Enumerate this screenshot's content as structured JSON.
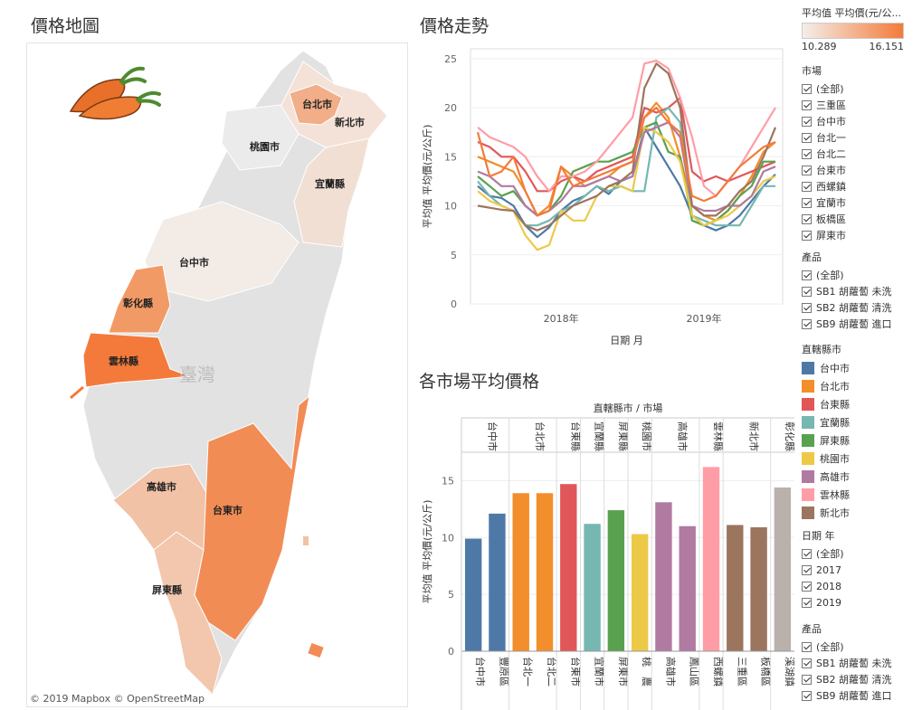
{
  "map": {
    "title": "價格地圖",
    "attribution": "© 2019 Mapbox © OpenStreetMap",
    "watermark": "臺灣",
    "labels": [
      "台北市",
      "新北市",
      "桃園市",
      "宜蘭縣",
      "台中市",
      "彰化縣",
      "雲林縣",
      "高雄市",
      "台東市",
      "屏東縣"
    ]
  },
  "trend": {
    "title": "價格走勢"
  },
  "avg": {
    "title": "各市場平均價格"
  },
  "legend_color": {
    "title": "平均值 平均價(元/公...",
    "min": "10.289",
    "max": "16.151"
  },
  "filters": {
    "market": {
      "title": "市場",
      "items": [
        "(全部)",
        "三重區",
        "台中市",
        "台北一",
        "台北二",
        "台東市",
        "西螺鎮",
        "宜蘭市",
        "板橋區",
        "屏東市"
      ]
    },
    "product": {
      "title": "產品",
      "items": [
        "(全部)",
        "SB1 胡蘿蔔 未洗",
        "SB2 胡蘿蔔 清洗",
        "SB9 胡蘿蔔 進口"
      ]
    },
    "county": {
      "title": "直轄縣市",
      "items": [
        {
          "name": "台中市",
          "color": "#4e79a7"
        },
        {
          "name": "台北市",
          "color": "#f28e2b"
        },
        {
          "name": "台東縣",
          "color": "#e15759"
        },
        {
          "name": "宜蘭縣",
          "color": "#76b7b2"
        },
        {
          "name": "屏東縣",
          "color": "#59a14f"
        },
        {
          "name": "桃園市",
          "color": "#edc948"
        },
        {
          "name": "高雄市",
          "color": "#b07aa1"
        },
        {
          "name": "雲林縣",
          "color": "#ff9da7"
        },
        {
          "name": "新北市",
          "color": "#9c755f"
        }
      ]
    },
    "year": {
      "title": "日期 年",
      "items": [
        "(全部)",
        "2017",
        "2018",
        "2019"
      ]
    },
    "product2": {
      "title": "產品",
      "items": [
        "(全部)",
        "SB1 胡蘿蔔 未洗",
        "SB2 胡蘿蔔 清洗",
        "SB9 胡蘿蔔 進口"
      ]
    }
  },
  "chart_data": [
    {
      "type": "line",
      "xlabel": "日期 月",
      "ylabel": "平均值 平均價(元/公斤)",
      "x_tick_labels": [
        "2018年",
        "2019年"
      ],
      "yticks": [
        0,
        5,
        10,
        15,
        20,
        25
      ],
      "ylim": [
        0,
        26
      ],
      "series": [
        {
          "color": "#4e79a7",
          "values": [
            12,
            11,
            10.8,
            10,
            8,
            6.8,
            7.8,
            9.5,
            10.5,
            11,
            12,
            11.2,
            12.5,
            13,
            18,
            16,
            14,
            12,
            9,
            8,
            7.5,
            8,
            9,
            10.5,
            12,
            13.2
          ]
        },
        {
          "color": "#f28e2b",
          "values": [
            15,
            14.5,
            14,
            13.5,
            11.5,
            9,
            10,
            14,
            13,
            12,
            12.5,
            13,
            14,
            14.5,
            19,
            20.5,
            19,
            15,
            10,
            9,
            8.5,
            9.5,
            11,
            13,
            15.5,
            16.5
          ]
        },
        {
          "color": "#e15759",
          "values": [
            16.5,
            16,
            15,
            15,
            13.5,
            11.5,
            11.5,
            12.5,
            13,
            12.5,
            13.5,
            14,
            14.5,
            15,
            20,
            19.5,
            20,
            21,
            13.5,
            12.5,
            13,
            12.5,
            13,
            13.5,
            14,
            14.5
          ]
        },
        {
          "color": "#76b7b2",
          "values": [
            12.5,
            11,
            10,
            9.5,
            8,
            8,
            8.5,
            9.5,
            10,
            11,
            12,
            11.5,
            12,
            11.5,
            11.5,
            19,
            20,
            18.5,
            9,
            8.5,
            8,
            8,
            8,
            10,
            12,
            12
          ]
        },
        {
          "color": "#59a14f",
          "values": [
            13,
            12,
            11,
            11.5,
            10,
            9,
            9.5,
            11,
            13.5,
            14,
            14.5,
            14.5,
            15,
            15.5,
            18,
            18.5,
            15.5,
            15,
            8.5,
            8,
            8.5,
            9.5,
            11,
            12,
            14.5,
            14.5
          ]
        },
        {
          "color": "#edc948",
          "values": [
            11.5,
            10.5,
            10,
            9.5,
            7,
            5.5,
            6,
            9.5,
            8.5,
            8.5,
            11,
            12,
            12,
            11.5,
            18,
            17.5,
            16.5,
            14.5,
            9,
            8,
            8.5,
            9,
            10,
            11,
            12.5,
            13
          ]
        },
        {
          "color": "#b07aa1",
          "values": [
            13.5,
            13,
            12,
            12,
            10,
            9,
            9.5,
            10.5,
            12,
            12,
            12.5,
            13,
            12.5,
            13,
            17.5,
            18,
            18.5,
            17,
            10,
            9.5,
            9.5,
            10,
            10,
            11,
            13.5,
            14
          ]
        },
        {
          "color": "#ff9da7",
          "values": [
            18,
            17,
            16.5,
            16,
            15,
            13,
            11.5,
            13,
            13,
            13.5,
            14.5,
            16,
            17.5,
            19,
            24.5,
            24.8,
            24,
            21,
            17,
            12,
            11,
            12.5,
            14,
            16,
            18,
            20
          ]
        },
        {
          "color": "#9c755f",
          "values": [
            10,
            9.8,
            9.6,
            9.5,
            8,
            7.5,
            8,
            9,
            10,
            10.5,
            11,
            12,
            12.5,
            13.5,
            22,
            24.5,
            23.5,
            20,
            10,
            9,
            9,
            10,
            11.5,
            12.5,
            15,
            18
          ]
        },
        {
          "color": "#f37a3a",
          "values": [
            17.5,
            13,
            13.5,
            15,
            11.5,
            9,
            9.5,
            14,
            12,
            12.5,
            13,
            13.5,
            14,
            14.5,
            19,
            20,
            18.5,
            17.5,
            11,
            10.5,
            11,
            12.5,
            14,
            15,
            16,
            16.5
          ]
        }
      ]
    },
    {
      "type": "bar",
      "ylabel": "平均值 平均價(元/公斤)",
      "header": "直轄縣市 / 市場",
      "yticks": [
        0,
        5,
        10,
        15
      ],
      "ylim": [
        0,
        17.5
      ],
      "groups": [
        {
          "county": "台中市",
          "color": "#4e79a7",
          "markets": [
            {
              "name": "台中市",
              "value": 9.9
            },
            {
              "name": "豐原區",
              "value": 12.1
            }
          ]
        },
        {
          "county": "台北市",
          "color": "#f28e2b",
          "markets": [
            {
              "name": "台北一",
              "value": 13.9
            },
            {
              "name": "台北二",
              "value": 13.9
            }
          ]
        },
        {
          "county": "台東縣",
          "color": "#e15759",
          "markets": [
            {
              "name": "台東市",
              "value": 14.7
            }
          ]
        },
        {
          "county": "宜蘭縣",
          "color": "#76b7b2",
          "markets": [
            {
              "name": "宜蘭市",
              "value": 11.2
            }
          ]
        },
        {
          "county": "屏東縣",
          "color": "#59a14f",
          "markets": [
            {
              "name": "屏東市",
              "value": 12.4
            }
          ]
        },
        {
          "county": "桃園市",
          "color": "#edc948",
          "markets": [
            {
              "name": "桃　農",
              "value": 10.3
            }
          ]
        },
        {
          "county": "高雄市",
          "color": "#b07aa1",
          "markets": [
            {
              "name": "高雄市",
              "value": 13.1
            },
            {
              "name": "鳳山區",
              "value": 11.0
            }
          ]
        },
        {
          "county": "雲林縣",
          "color": "#ff9da7",
          "markets": [
            {
              "name": "西螺鎮",
              "value": 16.2
            }
          ]
        },
        {
          "county": "新北市",
          "color": "#9c755f",
          "markets": [
            {
              "name": "三重區",
              "value": 11.1
            },
            {
              "name": "板橋區",
              "value": 10.9
            }
          ]
        },
        {
          "county": "彰化縣",
          "color": "#bab0ac",
          "markets": [
            {
              "name": "溪湖鎮",
              "value": 14.4
            }
          ]
        }
      ]
    }
  ]
}
